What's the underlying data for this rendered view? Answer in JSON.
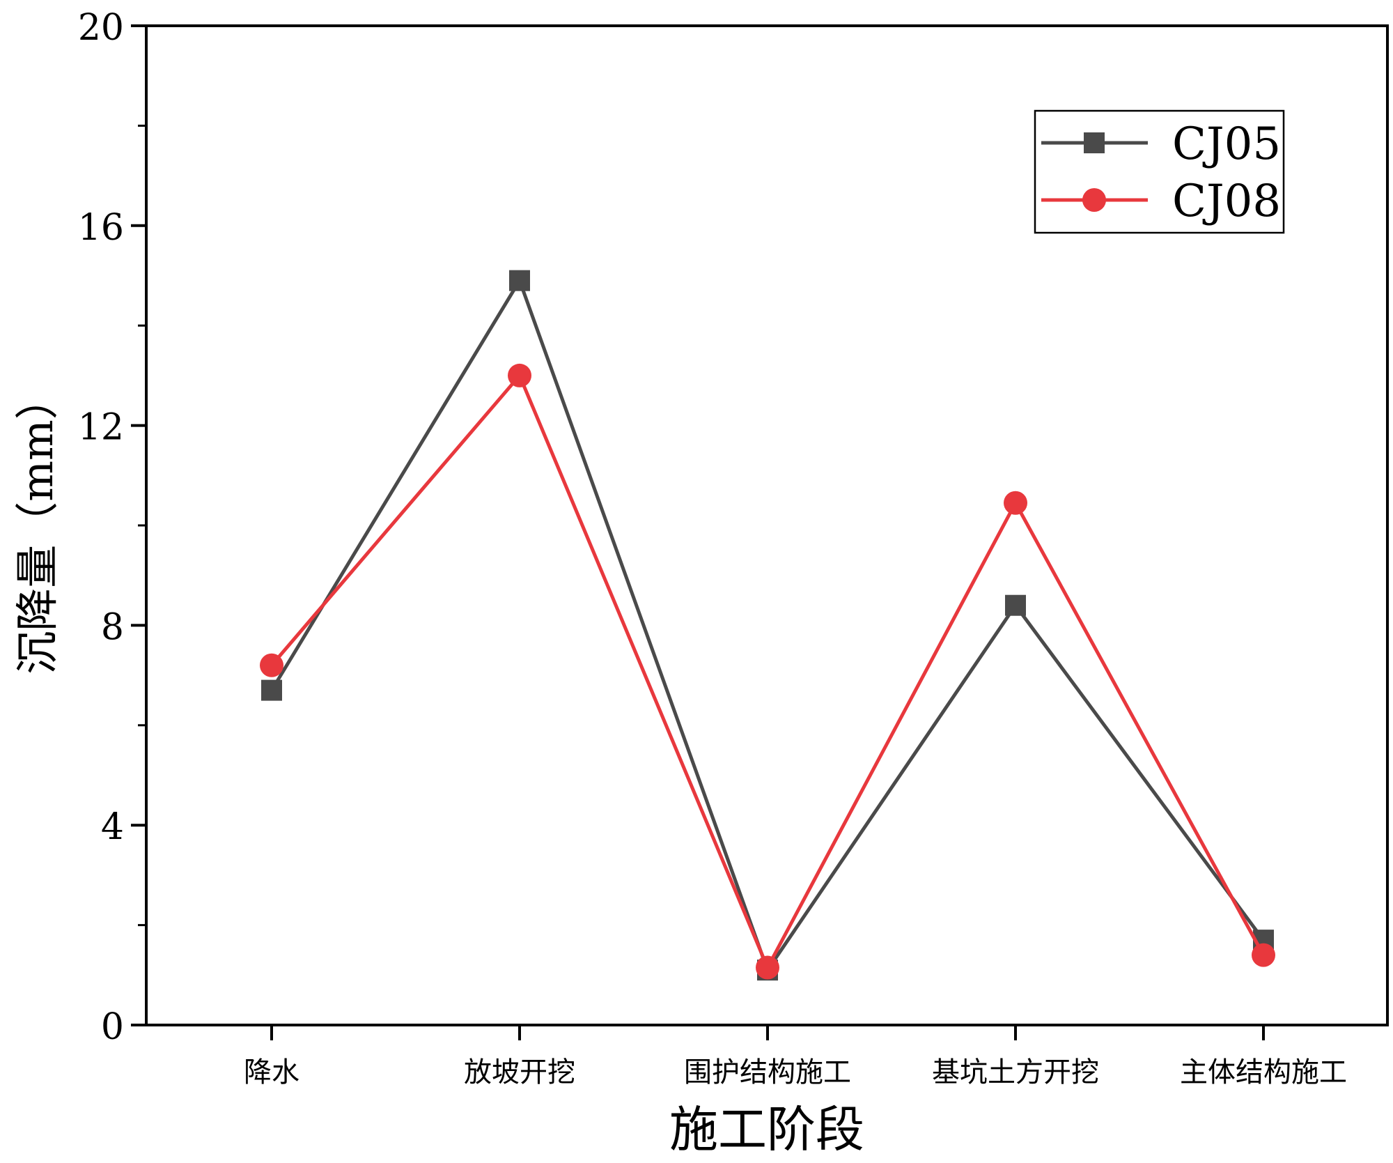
{
  "chart_data": {
    "type": "line",
    "title": "",
    "xlabel": "施工阶段",
    "ylabel": "沉降量（mm）",
    "categories": [
      "降水",
      "放坡开挖",
      "围护结构施工",
      "基坑土方开挖",
      "主体结构施工"
    ],
    "ylim": [
      0,
      20
    ],
    "yticks": [
      0,
      4,
      8,
      12,
      16,
      20
    ],
    "yticks_labels": [
      "0",
      "4",
      "8",
      "12",
      "16",
      "20"
    ],
    "grid": false,
    "legend_position": "top-right",
    "series": [
      {
        "name": "CJ05",
        "values": [
          6.7,
          14.9,
          1.1,
          8.4,
          1.7
        ],
        "color": "#4a4a4a",
        "marker": "square"
      },
      {
        "name": "CJ08",
        "values": [
          7.2,
          13.0,
          1.15,
          10.45,
          1.4
        ],
        "color": "#e8383d",
        "marker": "circle"
      }
    ]
  }
}
